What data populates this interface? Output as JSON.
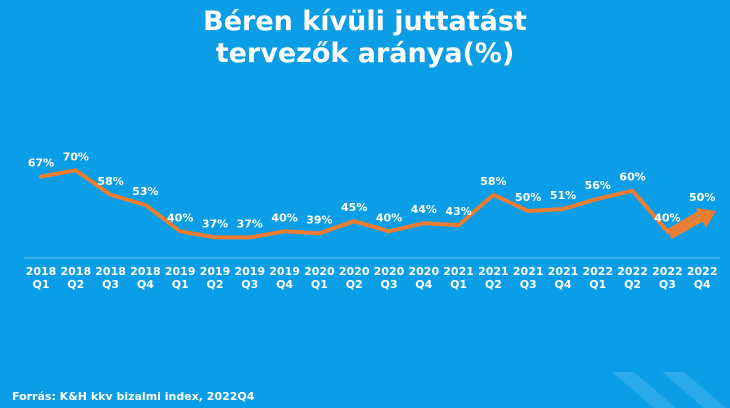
{
  "title_line1": "Béren kívüli juttatást",
  "title_line2": "tervezők aránya(%)",
  "source": "Forrás: K&H kkv bizalmi index, 2022Q4",
  "colors": {
    "background": "#0b9ee6",
    "line": "#ee7d31",
    "text": "#ffffff",
    "axis": "#6cc7f2"
  },
  "chart_data": {
    "type": "line",
    "title": "Béren kívüli juttatást tervezők aránya(%)",
    "categories": [
      [
        "2018",
        "Q1"
      ],
      [
        "2018",
        "Q2"
      ],
      [
        "2018",
        "Q3"
      ],
      [
        "2018",
        "Q4"
      ],
      [
        "2019",
        "Q1"
      ],
      [
        "2019",
        "Q2"
      ],
      [
        "2019",
        "Q3"
      ],
      [
        "2019",
        "Q4"
      ],
      [
        "2020",
        "Q1"
      ],
      [
        "2020",
        "Q2"
      ],
      [
        "2020",
        "Q3"
      ],
      [
        "2020",
        "Q4"
      ],
      [
        "2021",
        "Q1"
      ],
      [
        "2021",
        "Q2"
      ],
      [
        "2021",
        "Q3"
      ],
      [
        "2021",
        "Q4"
      ],
      [
        "2022",
        "Q1"
      ],
      [
        "2022",
        "Q2"
      ],
      [
        "2022",
        "Q3"
      ],
      [
        "2022",
        "Q4"
      ]
    ],
    "values": [
      67,
      70,
      58,
      53,
      40,
      37,
      37,
      40,
      39,
      45,
      40,
      44,
      43,
      58,
      50,
      51,
      56,
      60,
      40,
      50
    ],
    "labels": [
      "67%",
      "70%",
      "58%",
      "53%",
      "40%",
      "37%",
      "37%",
      "40%",
      "39%",
      "45%",
      "40%",
      "44%",
      "43%",
      "58%",
      "50%",
      "51%",
      "56%",
      "60%",
      "40%",
      "50%"
    ],
    "grid": false,
    "legend": "none",
    "annotation": "orange trend arrow pointing up-right near 2022Q4"
  }
}
